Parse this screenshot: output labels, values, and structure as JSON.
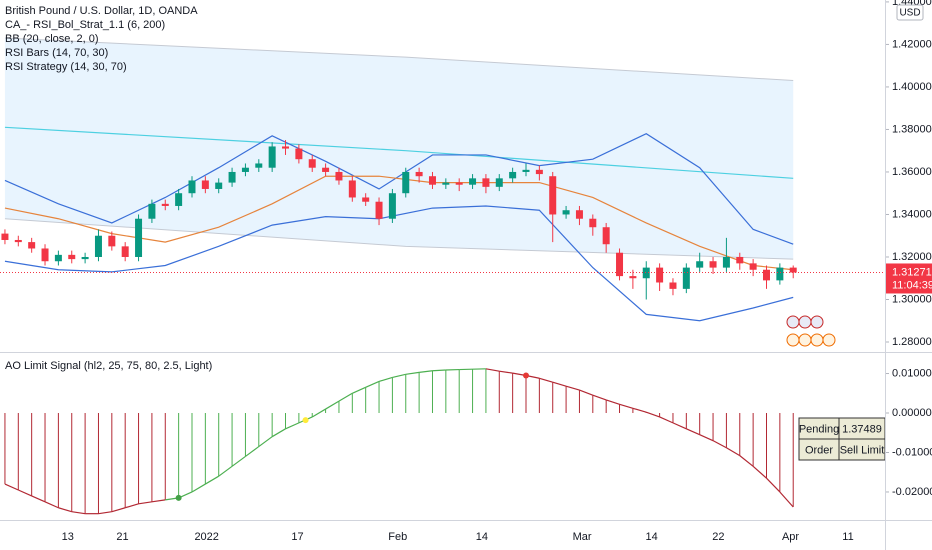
{
  "chart_data": [
    {
      "type": "candlestick",
      "title": "British Pound / U.S. Dollar, 1D, OANDA",
      "indicators": [
        "CA_- RSI_Bol_Strat_1.1 (6, 200)",
        "BB (20, close, 2, 0)",
        "RSI Bars (14, 70, 30)",
        "RSI Strategy (14, 30, 70)"
      ],
      "currency": "USD",
      "up_color": "#089981",
      "down_color": "#f23645",
      "x": [
        0,
        1,
        2,
        3,
        4,
        5,
        6,
        7,
        8,
        9,
        10,
        11,
        12,
        13,
        14,
        15,
        16,
        17,
        18,
        19,
        20,
        21,
        22,
        23,
        24,
        25,
        26,
        27,
        28,
        29,
        30,
        31,
        32,
        33,
        34,
        35,
        36,
        37,
        38,
        39,
        40,
        41,
        42,
        43,
        44,
        45,
        46,
        47,
        48,
        49,
        50,
        51,
        52,
        53,
        54,
        55,
        56,
        57,
        58,
        59
      ],
      "open": [
        1.331,
        1.328,
        1.327,
        1.324,
        1.318,
        1.321,
        1.319,
        1.32,
        1.33,
        1.325,
        1.32,
        1.338,
        1.345,
        1.344,
        1.35,
        1.356,
        1.352,
        1.355,
        1.36,
        1.362,
        1.362,
        1.372,
        1.371,
        1.366,
        1.362,
        1.36,
        1.356,
        1.348,
        1.346,
        1.338,
        1.35,
        1.36,
        1.358,
        1.354,
        1.355,
        1.354,
        1.357,
        1.353,
        1.357,
        1.36,
        1.361,
        1.358,
        1.34,
        1.342,
        1.338,
        1.334,
        1.322,
        1.311,
        1.31,
        1.315,
        1.308,
        1.305,
        1.315,
        1.318,
        1.315,
        1.32,
        1.317,
        1.314,
        1.309,
        1.315
      ],
      "high": [
        1.333,
        1.33,
        1.329,
        1.326,
        1.323,
        1.323,
        1.322,
        1.333,
        1.332,
        1.327,
        1.34,
        1.347,
        1.347,
        1.352,
        1.358,
        1.358,
        1.357,
        1.362,
        1.364,
        1.366,
        1.374,
        1.375,
        1.373,
        1.368,
        1.364,
        1.362,
        1.358,
        1.35,
        1.348,
        1.352,
        1.362,
        1.362,
        1.36,
        1.357,
        1.357,
        1.359,
        1.359,
        1.359,
        1.362,
        1.364,
        1.363,
        1.36,
        1.344,
        1.344,
        1.34,
        1.336,
        1.324,
        1.314,
        1.318,
        1.317,
        1.31,
        1.317,
        1.322,
        1.32,
        1.329,
        1.322,
        1.319,
        1.316,
        1.317,
        1.316
      ],
      "low": [
        1.326,
        1.325,
        1.322,
        1.316,
        1.316,
        1.317,
        1.317,
        1.318,
        1.323,
        1.318,
        1.318,
        1.336,
        1.342,
        1.342,
        1.348,
        1.35,
        1.35,
        1.353,
        1.358,
        1.36,
        1.36,
        1.368,
        1.364,
        1.36,
        1.358,
        1.354,
        1.346,
        1.344,
        1.335,
        1.336,
        1.348,
        1.355,
        1.352,
        1.352,
        1.351,
        1.352,
        1.35,
        1.351,
        1.355,
        1.358,
        1.356,
        1.327,
        1.338,
        1.335,
        1.33,
        1.322,
        1.309,
        1.305,
        1.3,
        1.304,
        1.302,
        1.303,
        1.313,
        1.312,
        1.313,
        1.314,
        1.311,
        1.305,
        1.307,
        1.31
      ],
      "close": [
        1.328,
        1.327,
        1.324,
        1.318,
        1.321,
        1.319,
        1.32,
        1.33,
        1.325,
        1.32,
        1.338,
        1.345,
        1.344,
        1.35,
        1.356,
        1.352,
        1.355,
        1.36,
        1.362,
        1.364,
        1.372,
        1.371,
        1.366,
        1.362,
        1.36,
        1.356,
        1.348,
        1.346,
        1.338,
        1.35,
        1.36,
        1.358,
        1.354,
        1.355,
        1.354,
        1.357,
        1.353,
        1.357,
        1.36,
        1.361,
        1.359,
        1.34,
        1.342,
        1.338,
        1.334,
        1.326,
        1.311,
        1.31,
        1.315,
        1.308,
        1.305,
        1.315,
        1.318,
        1.315,
        1.32,
        1.317,
        1.314,
        1.309,
        1.315,
        1.31271
      ],
      "band": {
        "color": "#2196f3",
        "x": [
          0,
          30,
          59
        ],
        "upper": [
          1.423,
          1.414,
          1.403
        ],
        "lower": [
          1.338,
          1.325,
          1.319
        ]
      },
      "lines": [
        {
          "color": "#4dd0e1",
          "x": [
            0,
            30,
            59
          ],
          "values": [
            1.381,
            1.37,
            1.357
          ]
        },
        {
          "color": "#3a6fd8",
          "x": [
            0,
            4,
            8,
            12,
            16,
            20,
            24,
            28,
            32,
            36,
            40,
            44,
            48,
            52,
            56,
            59
          ],
          "values": [
            1.356,
            1.345,
            1.336,
            1.348,
            1.362,
            1.377,
            1.365,
            1.352,
            1.368,
            1.368,
            1.363,
            1.366,
            1.378,
            1.362,
            1.333,
            1.326
          ]
        },
        {
          "color": "#3a6fd8",
          "x": [
            0,
            4,
            8,
            12,
            16,
            20,
            24,
            28,
            32,
            36,
            40,
            44,
            48,
            52,
            56,
            59
          ],
          "values": [
            1.318,
            1.314,
            1.313,
            1.316,
            1.325,
            1.335,
            1.339,
            1.338,
            1.343,
            1.344,
            1.342,
            1.315,
            1.293,
            1.29,
            1.296,
            1.301
          ]
        },
        {
          "color": "#e6843c",
          "x": [
            0,
            4,
            8,
            12,
            16,
            20,
            24,
            28,
            32,
            36,
            40,
            44,
            48,
            52,
            56,
            59
          ],
          "values": [
            1.343,
            1.338,
            1.331,
            1.327,
            1.334,
            1.345,
            1.358,
            1.358,
            1.355,
            1.355,
            1.355,
            1.348,
            1.336,
            1.325,
            1.316,
            1.314
          ]
        }
      ],
      "last_price": 1.31271,
      "countdown": "11:04:39",
      "xlim": [
        -0.37,
        65.87
      ],
      "ylim": [
        1.2753,
        1.4409
      ],
      "yticks": [
        {
          "value": 1.28,
          "label": "1.28000"
        },
        {
          "value": 1.3,
          "label": "1.30000"
        },
        {
          "value": 1.32,
          "label": "1.32000"
        },
        {
          "value": 1.34,
          "label": "1.34000"
        },
        {
          "value": 1.36,
          "label": "1.36000"
        },
        {
          "value": 1.38,
          "label": "1.38000"
        },
        {
          "value": 1.4,
          "label": "1.40000"
        },
        {
          "value": 1.42,
          "label": "1.42000"
        },
        {
          "value": 1.44,
          "label": "1.44000"
        }
      ]
    },
    {
      "type": "oscillator",
      "title": "AO Limit Signal (hl2, 25, 75, 80, 2.5, Light)",
      "x": [
        0,
        1,
        2,
        3,
        4,
        5,
        6,
        7,
        8,
        9,
        10,
        11,
        12,
        13,
        14,
        15,
        16,
        17,
        18,
        19,
        20,
        21,
        22,
        23,
        24,
        25,
        26,
        27,
        28,
        29,
        30,
        31,
        32,
        33,
        34,
        35,
        36,
        37,
        38,
        39,
        40,
        41,
        42,
        43,
        44,
        45,
        46,
        47,
        48,
        49,
        50,
        51,
        52,
        53,
        54,
        55,
        56,
        57,
        58,
        59
      ],
      "values": [
        -0.018,
        -0.0195,
        -0.021,
        -0.0225,
        -0.024,
        -0.025,
        -0.0255,
        -0.0255,
        -0.025,
        -0.024,
        -0.023,
        -0.0225,
        -0.022,
        -0.0215,
        -0.02,
        -0.018,
        -0.016,
        -0.0135,
        -0.011,
        -0.0085,
        -0.006,
        -0.004,
        -0.0025,
        -0.001,
        0.001,
        0.003,
        0.005,
        0.0065,
        0.008,
        0.009,
        0.0098,
        0.0103,
        0.0107,
        0.0109,
        0.011,
        0.0111,
        0.0112,
        0.0106,
        0.0101,
        0.0095,
        0.0088,
        0.0078,
        0.0068,
        0.0058,
        0.0045,
        0.0033,
        0.0022,
        0.0012,
        0.0002,
        -0.001,
        -0.0025,
        -0.004,
        -0.0055,
        -0.007,
        -0.0088,
        -0.0108,
        -0.0135,
        -0.0165,
        -0.02,
        -0.0238
      ],
      "colors": [
        "#b22833",
        "#b22833",
        "#b22833",
        "#b22833",
        "#b22833",
        "#b22833",
        "#b22833",
        "#b22833",
        "#b22833",
        "#b22833",
        "#b22833",
        "#b22833",
        "#b22833",
        "#4caf50",
        "#4caf50",
        "#4caf50",
        "#4caf50",
        "#4caf50",
        "#4caf50",
        "#4caf50",
        "#4caf50",
        "#4caf50",
        "#4caf50",
        "#4caf50",
        "#4caf50",
        "#4caf50",
        "#4caf50",
        "#4caf50",
        "#4caf50",
        "#4caf50",
        "#4caf50",
        "#4caf50",
        "#4caf50",
        "#4caf50",
        "#4caf50",
        "#4caf50",
        "#4caf50",
        "#b22833",
        "#b22833",
        "#b22833",
        "#b22833",
        "#b22833",
        "#b22833",
        "#b22833",
        "#b22833",
        "#b22833",
        "#b22833",
        "#b22833",
        "#b22833",
        "#b22833",
        "#b22833",
        "#b22833",
        "#b22833",
        "#b22833",
        "#b22833",
        "#b22833",
        "#b22833",
        "#b22833",
        "#b22833",
        "#b22833"
      ],
      "dots": [
        {
          "x": 13,
          "value": -0.0215,
          "color": "#43a047"
        },
        {
          "x": 22.5,
          "value": -0.0018,
          "color": "#ffeb3b"
        },
        {
          "x": 39,
          "value": 0.0095,
          "color": "#e53935"
        }
      ],
      "table": [
        [
          "Pending",
          "1.37489"
        ],
        [
          "Order",
          "Sell Limit"
        ]
      ],
      "xlim": [
        -0.37,
        65.87
      ],
      "ylim": [
        -0.0271,
        0.0152
      ],
      "yticks": [
        {
          "value": 0.01,
          "label": "0.01000"
        },
        {
          "value": 0,
          "label": "0.00000"
        },
        {
          "value": -0.01,
          "label": "-0.01000"
        },
        {
          "value": -0.02,
          "label": "-0.02000"
        }
      ],
      "xticks": [
        {
          "value": 4.7,
          "label": "13"
        },
        {
          "value": 8.8,
          "label": "21"
        },
        {
          "value": 15.1,
          "label": "2022"
        },
        {
          "value": 21.9,
          "label": "17"
        },
        {
          "value": 29.4,
          "label": "Feb"
        },
        {
          "value": 35.7,
          "label": "14"
        },
        {
          "value": 43.2,
          "label": "Mar"
        },
        {
          "value": 48.4,
          "label": "14"
        },
        {
          "value": 53.4,
          "label": "22"
        },
        {
          "value": 58.8,
          "label": "Apr"
        },
        {
          "value": 63.1,
          "label": "11"
        }
      ]
    }
  ]
}
